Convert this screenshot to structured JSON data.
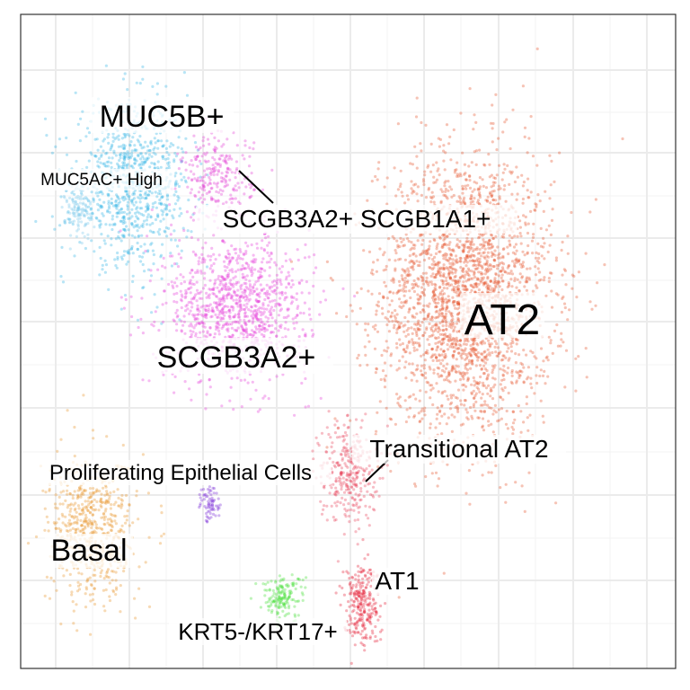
{
  "chart_data": {
    "type": "scatter",
    "title": "",
    "xlabel": "",
    "ylabel": "",
    "xlim": [
      0,
      100
    ],
    "ylim": [
      0,
      100
    ],
    "grid": true,
    "axis_ticks_visible": false,
    "background": "#ffffff",
    "point_alpha": 0.35,
    "clusters": [
      {
        "label": "AT2",
        "color": "#e4522b",
        "center": [
          68,
          57
        ],
        "spread": [
          12,
          20
        ],
        "n": 2600
      },
      {
        "label": "MUC5B+",
        "color": "#35b5e5",
        "center": [
          17,
          74
        ],
        "spread": [
          8,
          11
        ],
        "n": 900
      },
      {
        "label": "MUC5AC+ High",
        "color": "#7ac8ea",
        "center": [
          9,
          70
        ],
        "spread": [
          2,
          4
        ],
        "n": 120
      },
      {
        "label": "SCGB3A2+ SCGB1A1+",
        "color": "#e13fd4",
        "center": [
          30,
          75
        ],
        "spread": [
          5,
          6
        ],
        "n": 250
      },
      {
        "label": "SCGB3A2+",
        "color": "#e640da",
        "center": [
          33,
          55
        ],
        "spread": [
          10,
          10
        ],
        "n": 1100
      },
      {
        "label": "Transitional AT2",
        "color": "#e8455c",
        "center": [
          50,
          30
        ],
        "spread": [
          4,
          7
        ],
        "n": 320
      },
      {
        "label": "AT1",
        "color": "#e5233a",
        "center": [
          52,
          10
        ],
        "spread": [
          2.5,
          6
        ],
        "n": 260
      },
      {
        "label": "KRT5-/KRT17+",
        "color": "#48e03a",
        "center": [
          40,
          11
        ],
        "spread": [
          3,
          3
        ],
        "n": 160
      },
      {
        "label": "Proliferating Epithelial Cells",
        "color": "#7b2fd6",
        "center": [
          29,
          25
        ],
        "spread": [
          1.5,
          2.5
        ],
        "n": 70
      },
      {
        "label": "Basal",
        "color": "#e8962b",
        "center": [
          11,
          21
        ],
        "spread": [
          6,
          10
        ],
        "n": 650
      }
    ],
    "annotations": [
      {
        "text": "AT2"
      },
      {
        "text": "MUC5B+"
      },
      {
        "text": "MUC5AC+ High"
      },
      {
        "text": "SCGB3A2+ SCGB1A1+"
      },
      {
        "text": "SCGB3A2+"
      },
      {
        "text": "Transitional AT2"
      },
      {
        "text": "Proliferating Epithelial Cells"
      },
      {
        "text": "Basal"
      },
      {
        "text": "AT1"
      },
      {
        "text": "KRT5-/KRT17+"
      }
    ]
  }
}
